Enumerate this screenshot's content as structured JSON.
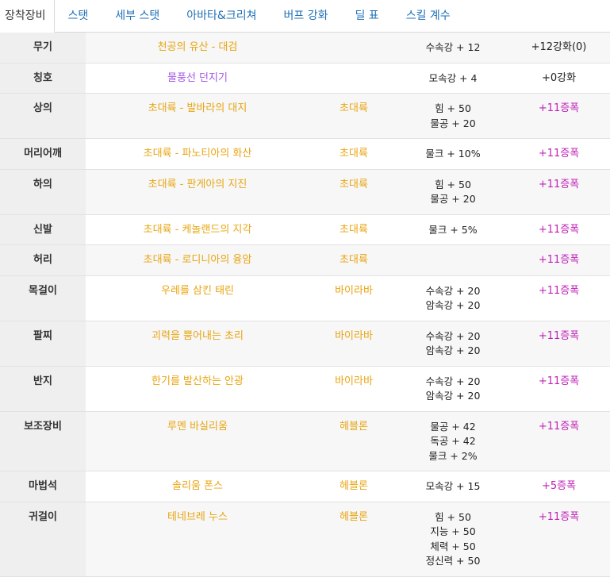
{
  "tabs": [
    {
      "label": "장착장비",
      "active": true
    },
    {
      "label": "스탯",
      "active": false
    },
    {
      "label": "세부 스탯",
      "active": false
    },
    {
      "label": "아바타&크리쳐",
      "active": false
    },
    {
      "label": "버프 강화",
      "active": false
    },
    {
      "label": "딜 표",
      "active": false
    },
    {
      "label": "스킬 계수",
      "active": false
    }
  ],
  "equipment": [
    {
      "slot": "무기",
      "name": "천공의 유산 - 대검",
      "set": "",
      "options": [
        "수속강 + 12"
      ],
      "reinforce": "+12강화(0)",
      "type": "normal",
      "name_color": "gold"
    },
    {
      "slot": "칭호",
      "name": "물풍선 던지기",
      "set": "",
      "options": [
        "모속강 + 4"
      ],
      "reinforce": "+0강화",
      "type": "normal",
      "name_color": "purple"
    },
    {
      "slot": "상의",
      "name": "초대륙 - 발바라의 대지",
      "set": "초대륙",
      "options": [
        "힘 + 50",
        "물공 + 20"
      ],
      "reinforce": "+11증폭",
      "type": "amp",
      "name_color": "gold"
    },
    {
      "slot": "머리어깨",
      "name": "초대륙 - 파노티아의 화산",
      "set": "초대륙",
      "options": [
        "물크 + 10%"
      ],
      "reinforce": "+11증폭",
      "type": "amp",
      "name_color": "gold"
    },
    {
      "slot": "하의",
      "name": "초대륙 - 판게아의 지진",
      "set": "초대륙",
      "options": [
        "힘 + 50",
        "물공 + 20"
      ],
      "reinforce": "+11증폭",
      "type": "amp",
      "name_color": "gold"
    },
    {
      "slot": "신발",
      "name": "초대륙 - 케놀랜드의 지각",
      "set": "초대륙",
      "options": [
        "물크 + 5%"
      ],
      "reinforce": "+11증폭",
      "type": "amp",
      "name_color": "gold"
    },
    {
      "slot": "허리",
      "name": "초대륙 - 로디니아의 융암",
      "set": "초대륙",
      "options": [],
      "reinforce": "+11증폭",
      "type": "amp",
      "name_color": "gold"
    },
    {
      "slot": "목걸이",
      "name": "우레를 삼킨 태린",
      "set": "바이라바",
      "options": [
        "수속강 + 20",
        "암속강 + 20"
      ],
      "reinforce": "+11증폭",
      "type": "amp",
      "name_color": "gold"
    },
    {
      "slot": "팔찌",
      "name": "괴력을 뿜어내는 초리",
      "set": "바이라바",
      "options": [
        "수속강 + 20",
        "암속강 + 20"
      ],
      "reinforce": "+11증폭",
      "type": "amp",
      "name_color": "gold"
    },
    {
      "slot": "반지",
      "name": "한기를 발산하는 안광",
      "set": "바이라바",
      "options": [
        "수속강 + 20",
        "암속강 + 20"
      ],
      "reinforce": "+11증폭",
      "type": "amp",
      "name_color": "gold"
    },
    {
      "slot": "보조장비",
      "name": "루멘 바실리움",
      "set": "헤블론",
      "options": [
        "물공 + 42",
        "독공 + 42",
        "물크 + 2%"
      ],
      "reinforce": "+11증폭",
      "type": "amp",
      "name_color": "gold"
    },
    {
      "slot": "마법석",
      "name": "솔리움 폰스",
      "set": "헤블론",
      "options": [
        "모속강 + 15"
      ],
      "reinforce": "+5증폭",
      "type": "amp",
      "name_color": "gold"
    },
    {
      "slot": "귀걸이",
      "name": "테네브레 누스",
      "set": "헤블론",
      "options": [
        "힘 + 50",
        "지능 + 50",
        "체력 + 50",
        "정신력 + 50"
      ],
      "reinforce": "+11증폭",
      "type": "amp",
      "name_color": "gold"
    }
  ]
}
